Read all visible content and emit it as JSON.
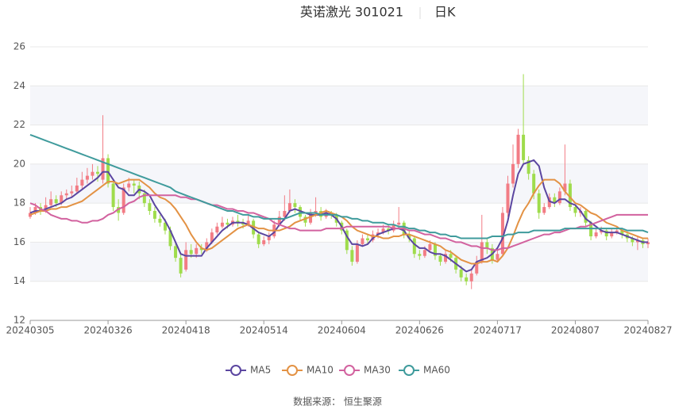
{
  "chart_data": {
    "type": "candlestick",
    "title": "英诺激光 301021",
    "subtitle": "日K",
    "source": "数据来源：  恒生聚源",
    "up_color": "#f27c85",
    "down_color": "#9fdc4c",
    "ylim": [
      12,
      26
    ],
    "yticks": [
      12,
      14,
      16,
      18,
      20,
      22,
      24,
      26
    ],
    "categories": [
      "20240305",
      null,
      null,
      null,
      null,
      null,
      null,
      null,
      null,
      null,
      null,
      null,
      null,
      null,
      null,
      "20240326",
      null,
      null,
      null,
      null,
      null,
      null,
      null,
      null,
      null,
      null,
      null,
      null,
      null,
      null,
      "20240418",
      null,
      null,
      null,
      null,
      null,
      null,
      null,
      null,
      null,
      null,
      null,
      null,
      null,
      null,
      "20240514",
      null,
      null,
      null,
      null,
      null,
      null,
      null,
      null,
      null,
      null,
      null,
      null,
      null,
      null,
      "20240604",
      null,
      null,
      null,
      null,
      null,
      null,
      null,
      null,
      null,
      null,
      null,
      null,
      null,
      null,
      "20240626",
      null,
      null,
      null,
      null,
      null,
      null,
      null,
      null,
      null,
      null,
      null,
      null,
      null,
      null,
      "20240717",
      null,
      null,
      null,
      null,
      null,
      null,
      null,
      null,
      null,
      null,
      null,
      null,
      null,
      null,
      "20240807",
      null,
      null,
      null,
      null,
      null,
      null,
      null,
      null,
      null,
      null,
      null,
      null,
      null,
      "20240827"
    ],
    "candles": [
      [
        17.3,
        17.5,
        17.2,
        17.8
      ],
      [
        17.5,
        17.8,
        17.4,
        18.0
      ],
      [
        17.8,
        17.6,
        17.4,
        18.0
      ],
      [
        17.6,
        17.9,
        17.5,
        18.3
      ],
      [
        17.9,
        18.2,
        17.8,
        18.6
      ],
      [
        18.2,
        18.0,
        17.8,
        18.4
      ],
      [
        18.0,
        18.4,
        17.9,
        18.6
      ],
      [
        18.4,
        18.5,
        18.2,
        18.7
      ],
      [
        18.5,
        18.6,
        18.3,
        18.9
      ],
      [
        18.6,
        18.9,
        18.5,
        19.3
      ],
      [
        18.9,
        19.2,
        18.7,
        19.6
      ],
      [
        19.2,
        19.4,
        19.0,
        19.8
      ],
      [
        19.4,
        19.6,
        19.2,
        20.0
      ],
      [
        19.6,
        19.5,
        19.1,
        19.9
      ],
      [
        19.2,
        20.3,
        19.0,
        22.5
      ],
      [
        20.3,
        19.0,
        18.8,
        20.5
      ],
      [
        19.0,
        17.8,
        17.6,
        19.2
      ],
      [
        17.8,
        17.5,
        17.1,
        18.2
      ],
      [
        17.5,
        18.8,
        17.4,
        19.0
      ],
      [
        18.8,
        19.0,
        18.6,
        19.3
      ],
      [
        19.0,
        18.9,
        18.5,
        19.2
      ],
      [
        18.9,
        18.5,
        18.2,
        19.1
      ],
      [
        18.5,
        18.0,
        17.8,
        18.7
      ],
      [
        18.0,
        17.6,
        17.4,
        18.2
      ],
      [
        17.6,
        17.2,
        17.0,
        17.8
      ],
      [
        17.2,
        17.0,
        16.8,
        17.4
      ],
      [
        17.0,
        16.6,
        16.4,
        17.2
      ],
      [
        16.6,
        15.8,
        15.6,
        16.8
      ],
      [
        15.8,
        15.2,
        15.0,
        16.0
      ],
      [
        15.2,
        14.4,
        14.2,
        15.4
      ],
      [
        14.6,
        15.6,
        14.5,
        16.0
      ],
      [
        15.6,
        15.4,
        15.2,
        15.9
      ],
      [
        15.4,
        15.7,
        15.2,
        15.9
      ],
      [
        15.7,
        15.6,
        15.4,
        15.9
      ],
      [
        15.6,
        16.0,
        15.5,
        16.2
      ],
      [
        16.0,
        16.5,
        15.9,
        16.7
      ],
      [
        16.5,
        16.8,
        16.4,
        17.0
      ],
      [
        16.8,
        17.0,
        16.7,
        17.3
      ],
      [
        17.0,
        16.9,
        16.7,
        17.2
      ],
      [
        16.9,
        17.1,
        16.8,
        17.3
      ],
      [
        17.1,
        17.0,
        16.8,
        17.4
      ],
      [
        17.0,
        16.9,
        16.7,
        17.2
      ],
      [
        16.9,
        17.1,
        16.8,
        17.4
      ],
      [
        17.1,
        16.4,
        16.2,
        17.2
      ],
      [
        16.4,
        15.9,
        15.7,
        16.5
      ],
      [
        15.9,
        16.1,
        15.8,
        16.3
      ],
      [
        16.1,
        16.3,
        15.9,
        16.5
      ],
      [
        16.3,
        16.9,
        16.2,
        17.1
      ],
      [
        16.9,
        17.3,
        16.8,
        17.6
      ],
      [
        17.3,
        17.6,
        17.1,
        18.4
      ],
      [
        17.6,
        18.0,
        17.5,
        18.7
      ],
      [
        18.0,
        17.8,
        17.5,
        18.2
      ],
      [
        17.8,
        17.3,
        17.1,
        17.9
      ],
      [
        17.3,
        17.0,
        16.8,
        17.4
      ],
      [
        17.0,
        17.5,
        16.9,
        17.7
      ],
      [
        17.5,
        17.6,
        17.3,
        18.3
      ],
      [
        17.6,
        17.3,
        17.1,
        17.8
      ],
      [
        17.3,
        17.5,
        17.2,
        17.7
      ],
      [
        17.5,
        17.4,
        17.2,
        17.6
      ],
      [
        17.4,
        17.0,
        16.8,
        17.5
      ],
      [
        17.0,
        16.6,
        16.4,
        17.1
      ],
      [
        16.6,
        15.6,
        15.4,
        16.7
      ],
      [
        15.6,
        15.0,
        14.8,
        15.8
      ],
      [
        15.0,
        15.9,
        14.9,
        16.1
      ],
      [
        15.9,
        16.2,
        15.8,
        16.4
      ],
      [
        16.2,
        16.1,
        15.9,
        16.4
      ],
      [
        16.1,
        16.4,
        16.0,
        16.6
      ],
      [
        16.4,
        16.5,
        16.2,
        16.7
      ],
      [
        16.5,
        16.7,
        16.4,
        16.9
      ],
      [
        16.7,
        16.6,
        16.4,
        16.9
      ],
      [
        16.6,
        16.9,
        16.5,
        17.1
      ],
      [
        16.9,
        17.0,
        16.7,
        17.8
      ],
      [
        17.0,
        16.4,
        16.2,
        17.1
      ],
      [
        16.4,
        16.2,
        16.0,
        16.6
      ],
      [
        16.2,
        15.4,
        15.2,
        16.3
      ],
      [
        15.4,
        15.3,
        15.1,
        15.6
      ],
      [
        15.3,
        15.6,
        15.2,
        15.8
      ],
      [
        15.6,
        15.9,
        15.5,
        16.1
      ],
      [
        15.9,
        15.3,
        15.1,
        16.0
      ],
      [
        15.3,
        15.0,
        14.8,
        15.4
      ],
      [
        15.0,
        15.4,
        14.9,
        15.6
      ],
      [
        15.4,
        15.2,
        15.0,
        15.6
      ],
      [
        15.2,
        14.6,
        14.4,
        15.3
      ],
      [
        14.6,
        14.2,
        14.0,
        14.8
      ],
      [
        14.2,
        14.0,
        13.8,
        14.4
      ],
      [
        14.0,
        14.4,
        13.6,
        14.6
      ],
      [
        14.4,
        15.0,
        14.3,
        15.3
      ],
      [
        15.0,
        16.0,
        14.9,
        17.4
      ],
      [
        16.0,
        15.7,
        15.4,
        16.2
      ],
      [
        15.7,
        15.1,
        14.9,
        15.9
      ],
      [
        15.1,
        15.4,
        15.0,
        15.7
      ],
      [
        15.4,
        17.5,
        15.3,
        17.8
      ],
      [
        17.5,
        19.0,
        17.3,
        19.4
      ],
      [
        19.0,
        20.0,
        18.8,
        21.0
      ],
      [
        20.0,
        21.5,
        19.8,
        21.8
      ],
      [
        21.5,
        20.2,
        20.0,
        24.6
      ],
      [
        20.2,
        19.5,
        19.2,
        20.4
      ],
      [
        19.5,
        18.5,
        18.2,
        19.7
      ],
      [
        18.5,
        17.5,
        17.2,
        18.7
      ],
      [
        17.5,
        17.8,
        17.4,
        18.0
      ],
      [
        17.8,
        18.3,
        17.7,
        18.5
      ],
      [
        18.3,
        18.0,
        17.8,
        18.5
      ],
      [
        18.0,
        18.6,
        17.9,
        18.8
      ],
      [
        18.6,
        19.0,
        18.4,
        21.0
      ],
      [
        19.0,
        17.8,
        17.6,
        19.2
      ],
      [
        17.8,
        17.5,
        17.3,
        17.9
      ],
      [
        17.5,
        17.6,
        17.3,
        17.8
      ],
      [
        17.6,
        17.0,
        16.8,
        17.7
      ],
      [
        17.0,
        16.3,
        16.1,
        17.1
      ],
      [
        16.3,
        16.5,
        16.2,
        16.7
      ],
      [
        16.5,
        16.6,
        16.4,
        16.8
      ],
      [
        16.6,
        16.3,
        16.1,
        16.7
      ],
      [
        16.3,
        16.5,
        16.2,
        16.7
      ],
      [
        16.5,
        16.6,
        16.4,
        16.8
      ],
      [
        16.6,
        16.4,
        16.2,
        16.7
      ],
      [
        16.4,
        16.2,
        16.0,
        16.5
      ],
      [
        16.2,
        16.0,
        15.8,
        16.3
      ],
      [
        16.0,
        16.1,
        15.6,
        16.3
      ],
      [
        16.1,
        15.9,
        15.7,
        16.2
      ],
      [
        15.9,
        16.0,
        15.7,
        16.2
      ]
    ],
    "series": [
      {
        "name": "MA5",
        "color": "#5b46a0",
        "values": [
          17.5,
          17.6,
          17.6,
          17.7,
          17.8,
          17.9,
          18.0,
          18.2,
          18.3,
          18.5,
          18.7,
          18.9,
          19.1,
          19.3,
          19.6,
          19.6,
          19.2,
          18.8,
          18.7,
          18.4,
          18.4,
          18.7,
          18.6,
          18.4,
          17.9,
          17.5,
          17.1,
          16.6,
          16.0,
          15.4,
          15.3,
          15.3,
          15.3,
          15.3,
          15.7,
          16.0,
          16.3,
          16.6,
          16.8,
          17.0,
          17.0,
          17.0,
          16.9,
          16.7,
          16.5,
          16.4,
          16.3,
          16.5,
          16.9,
          17.2,
          17.6,
          17.7,
          17.6,
          17.5,
          17.4,
          17.4,
          17.4,
          17.5,
          17.4,
          17.2,
          16.8,
          16.3,
          15.9,
          15.9,
          15.8,
          15.9,
          16.2,
          16.4,
          16.5,
          16.6,
          16.7,
          16.7,
          16.6,
          16.2,
          15.9,
          15.7,
          15.7,
          15.5,
          15.4,
          15.4,
          15.3,
          15.1,
          14.9,
          14.7,
          14.5,
          14.6,
          15.0,
          15.1,
          15.2,
          15.4,
          15.7,
          16.2,
          17.1,
          18.4,
          19.5,
          20.0,
          20.1,
          20.2,
          19.9,
          18.8,
          18.1,
          18.0,
          18.2,
          18.2,
          18.0,
          17.9,
          17.6,
          17.2,
          17.0,
          16.8,
          16.6,
          16.5,
          16.5,
          16.5,
          16.4,
          16.3,
          16.2,
          16.1,
          16.0,
          16.0
        ]
      },
      {
        "name": "MA10",
        "color": "#e39244",
        "values": [
          17.4,
          17.5,
          17.6,
          17.6,
          17.7,
          17.7,
          17.8,
          17.8,
          17.9,
          18.0,
          18.1,
          18.3,
          18.5,
          18.7,
          18.9,
          19.1,
          19.1,
          19.0,
          19.1,
          19.2,
          19.2,
          19.2,
          19.0,
          18.8,
          18.5,
          18.3,
          18.2,
          18.0,
          17.7,
          17.3,
          16.9,
          16.4,
          16.0,
          15.7,
          15.6,
          15.7,
          15.9,
          16.1,
          16.3,
          16.5,
          16.7,
          16.8,
          16.9,
          16.8,
          16.7,
          16.7,
          16.6,
          16.6,
          16.6,
          16.7,
          16.8,
          17.0,
          17.1,
          17.2,
          17.3,
          17.4,
          17.5,
          17.6,
          17.5,
          17.4,
          17.3,
          17.1,
          16.8,
          16.6,
          16.5,
          16.4,
          16.3,
          16.3,
          16.2,
          16.2,
          16.3,
          16.3,
          16.4,
          16.4,
          16.3,
          16.2,
          16.1,
          16.0,
          15.9,
          15.8,
          15.6,
          15.5,
          15.3,
          15.1,
          15.0,
          14.9,
          14.9,
          15.0,
          15.0,
          15.1,
          15.0,
          15.3,
          15.7,
          16.3,
          17.0,
          17.6,
          18.0,
          18.5,
          18.9,
          19.2,
          19.2,
          19.2,
          19.0,
          18.6,
          18.3,
          18.0,
          17.9,
          17.7,
          17.5,
          17.4,
          17.2,
          17.0,
          16.9,
          16.8,
          16.6,
          16.5,
          16.4,
          16.3,
          16.2,
          16.2
        ]
      },
      {
        "name": "MA30",
        "color": "#d2629f",
        "values": [
          18.0,
          17.9,
          17.7,
          17.6,
          17.4,
          17.3,
          17.2,
          17.2,
          17.1,
          17.1,
          17.0,
          17.0,
          17.1,
          17.1,
          17.2,
          17.4,
          17.5,
          17.7,
          17.8,
          18.0,
          18.1,
          18.3,
          18.4,
          18.4,
          18.4,
          18.4,
          18.4,
          18.4,
          18.4,
          18.3,
          18.3,
          18.2,
          18.2,
          18.1,
          18.0,
          17.9,
          17.9,
          17.8,
          17.7,
          17.7,
          17.6,
          17.6,
          17.5,
          17.5,
          17.4,
          17.3,
          17.2,
          17.0,
          16.9,
          16.8,
          16.7,
          16.7,
          16.6,
          16.6,
          16.6,
          16.6,
          16.6,
          16.7,
          16.7,
          16.7,
          16.7,
          16.8,
          16.8,
          16.8,
          16.8,
          16.8,
          16.8,
          16.8,
          16.8,
          16.8,
          16.7,
          16.7,
          16.7,
          16.6,
          16.6,
          16.5,
          16.4,
          16.4,
          16.3,
          16.2,
          16.2,
          16.1,
          16.0,
          16.0,
          15.9,
          15.8,
          15.8,
          15.7,
          15.7,
          15.6,
          15.6,
          15.7,
          15.7,
          15.8,
          15.9,
          16.0,
          16.1,
          16.2,
          16.3,
          16.4,
          16.4,
          16.5,
          16.5,
          16.6,
          16.7,
          16.7,
          16.8,
          16.8,
          16.9,
          17.0,
          17.1,
          17.2,
          17.3,
          17.4,
          17.4,
          17.4,
          17.4,
          17.4,
          17.4,
          17.4
        ]
      },
      {
        "name": "MA60",
        "color": "#3f9b9c",
        "values": [
          21.5,
          21.4,
          21.3,
          21.2,
          21.1,
          21.0,
          20.9,
          20.8,
          20.7,
          20.6,
          20.5,
          20.4,
          20.3,
          20.2,
          20.1,
          20.0,
          19.9,
          19.8,
          19.7,
          19.6,
          19.5,
          19.4,
          19.3,
          19.2,
          19.1,
          19.0,
          18.9,
          18.8,
          18.6,
          18.5,
          18.4,
          18.3,
          18.2,
          18.1,
          18.0,
          17.9,
          17.8,
          17.7,
          17.6,
          17.6,
          17.5,
          17.4,
          17.4,
          17.3,
          17.3,
          17.2,
          17.2,
          17.2,
          17.2,
          17.2,
          17.3,
          17.4,
          17.5,
          17.5,
          17.5,
          17.5,
          17.4,
          17.4,
          17.4,
          17.4,
          17.3,
          17.3,
          17.2,
          17.2,
          17.1,
          17.1,
          17.0,
          17.0,
          17.0,
          16.9,
          16.9,
          16.8,
          16.8,
          16.7,
          16.7,
          16.6,
          16.6,
          16.5,
          16.5,
          16.4,
          16.4,
          16.3,
          16.3,
          16.2,
          16.2,
          16.2,
          16.2,
          16.2,
          16.2,
          16.3,
          16.3,
          16.3,
          16.4,
          16.4,
          16.5,
          16.5,
          16.5,
          16.6,
          16.6,
          16.6,
          16.6,
          16.6,
          16.6,
          16.7,
          16.7,
          16.7,
          16.7,
          16.7,
          16.7,
          16.7,
          16.7,
          16.7,
          16.7,
          16.7,
          16.7,
          16.6,
          16.6,
          16.6,
          16.6,
          16.5
        ]
      }
    ]
  }
}
